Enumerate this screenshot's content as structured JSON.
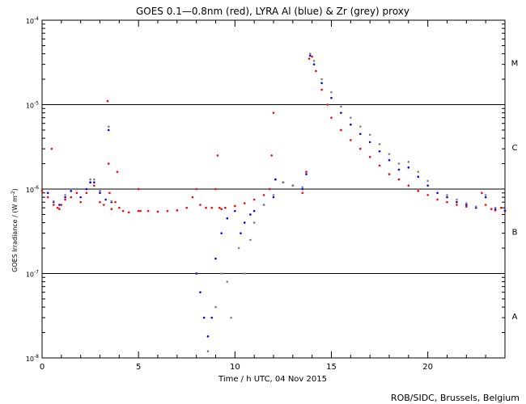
{
  "chart_data": {
    "type": "scatter",
    "title": "GOES 0.1—0.8nm (red), LYRA Al (blue) & Zr (grey) proxy",
    "xlabel": "Time / h UTC, 04 Nov 2015",
    "ylabel": "GOES Irradiance / (W m",
    "ylabel_sup": "-2",
    "ylabel_close": ")",
    "xlim": [
      0,
      24
    ],
    "ylim_log10": [
      -8,
      -4
    ],
    "xticks": [
      0,
      5,
      10,
      15,
      20
    ],
    "xtick_labels": [
      "0",
      "5",
      "10",
      "15",
      "20"
    ],
    "yticks_log10": [
      -8,
      -7,
      -6,
      -5,
      -4
    ],
    "ytick_base": "10",
    "ytick_exponents": [
      "-8",
      "-7",
      "-6",
      "-5",
      "-4"
    ],
    "class_lines_log10": [
      -7,
      -6,
      -5
    ],
    "flare_classes": [
      {
        "label": "A",
        "log10": -7.5
      },
      {
        "label": "B",
        "log10": -6.5
      },
      {
        "label": "C",
        "log10": -5.5
      },
      {
        "label": "M",
        "log10": -4.5
      }
    ],
    "credit": "ROB/SIDC, Brussels, Belgium",
    "series": [
      {
        "name": "GOES 0.1-0.8nm",
        "color": "#ff0000",
        "x": [
          0,
          0.3,
          0.5,
          0.6,
          0.8,
          0.9,
          1.0,
          1.2,
          1.5,
          1.8,
          2.0,
          2.3,
          2.5,
          2.7,
          3.0,
          3.2,
          3.4,
          3.45,
          3.5,
          3.6,
          3.8,
          3.9,
          4.0,
          4.2,
          4.5,
          5.0,
          5.0,
          5.1,
          5.5,
          6.0,
          6.5,
          7.0,
          7.5,
          7.8,
          8.0,
          8.2,
          8.5,
          8.8,
          9.0,
          9.1,
          9.2,
          9.3,
          9.5,
          10.0,
          10.5,
          11.0,
          11.5,
          11.8,
          11.9,
          12.0,
          12.1,
          12.5,
          13.0,
          13.5,
          13.7,
          13.85,
          14.0,
          14.2,
          14.5,
          14.8,
          15.0,
          15.5,
          16.0,
          16.5,
          17.0,
          17.5,
          18.0,
          18.5,
          19.0,
          19.5,
          20.0,
          20.5,
          21.0,
          21.5,
          22.0,
          22.5,
          22.8,
          23.0,
          23.3,
          23.5,
          23.8,
          24.0
        ],
        "y": [
          9.5e-07,
          8e-07,
          3e-06,
          6.5e-07,
          6e-07,
          5.8e-07,
          6.5e-07,
          7.5e-07,
          8e-07,
          9e-07,
          7e-07,
          9e-07,
          1.2e-06,
          1.1e-06,
          7e-07,
          6.5e-07,
          1.1e-05,
          2e-06,
          9e-07,
          5.8e-07,
          7e-07,
          1.6e-06,
          6e-07,
          5.5e-07,
          5.3e-07,
          5.5e-07,
          1e-06,
          5.5e-07,
          5.5e-07,
          5.4e-07,
          5.5e-07,
          5.6e-07,
          6e-07,
          8e-07,
          1e-06,
          6.5e-07,
          6e-07,
          6e-07,
          1e-06,
          2.5e-06,
          6e-07,
          5.8e-07,
          6e-07,
          6.3e-07,
          6.8e-07,
          7.5e-07,
          8.5e-07,
          1e-06,
          2.5e-06,
          8e-06,
          1.3e-06,
          1.2e-06,
          1.1e-06,
          9e-07,
          1.6e-06,
          3.5e-05,
          3.7e-05,
          2.5e-05,
          1.5e-05,
          1e-05,
          7e-06,
          5e-06,
          3.8e-06,
          3e-06,
          2.4e-06,
          1.9e-06,
          1.5e-06,
          1.3e-06,
          1.1e-06,
          9.5e-07,
          8.5e-07,
          7.5e-07,
          7e-07,
          6.5e-07,
          6.2e-07,
          6e-07,
          9e-07,
          6.5e-07,
          5.8e-07,
          5.6e-07,
          6e-07,
          5.5e-07
        ]
      },
      {
        "name": "LYRA Al proxy",
        "color": "#0000ff",
        "x": [
          0,
          0.3,
          0.6,
          0.9,
          1.2,
          1.5,
          1.8,
          2.0,
          2.3,
          2.5,
          2.7,
          3.0,
          3.3,
          3.45,
          3.6,
          8.0,
          8.2,
          8.4,
          8.6,
          8.8,
          9.0,
          9.3,
          9.6,
          10.0,
          10.3,
          10.5,
          10.8,
          11.0,
          11.5,
          12.0,
          12.1,
          12.5,
          13.0,
          13.5,
          13.7,
          13.9,
          14.1,
          14.5,
          15.0,
          15.5,
          16.0,
          16.5,
          17.0,
          17.5,
          18.0,
          18.5,
          19.0,
          19.5,
          20.0,
          20.5,
          21.0,
          21.5,
          22.0,
          22.5,
          23.0,
          23.5,
          24.0
        ],
        "y": [
          1e-06,
          9e-07,
          7e-07,
          6.5e-07,
          8e-07,
          9.5e-07,
          1e-06,
          8e-07,
          1e-06,
          1.2e-06,
          1.2e-06,
          9e-07,
          7.5e-07,
          5e-06,
          7e-07,
          1e-07,
          6e-08,
          3e-08,
          1.8e-08,
          3e-08,
          1.5e-07,
          3e-07,
          4.5e-07,
          5.5e-07,
          3e-07,
          4e-07,
          5e-07,
          5.5e-07,
          6.5e-07,
          8e-07,
          1.3e-06,
          1.2e-06,
          1.1e-06,
          1e-06,
          1.5e-06,
          3.8e-05,
          3e-05,
          1.8e-05,
          1.2e-05,
          8e-06,
          5.8e-06,
          4.5e-06,
          3.6e-06,
          2.8e-06,
          2.2e-06,
          1.7e-06,
          1.8e-06,
          1.4e-06,
          1.1e-06,
          9e-07,
          8e-07,
          7e-07,
          6.5e-07,
          6e-07,
          8e-07,
          5.8e-07,
          5.6e-07
        ]
      },
      {
        "name": "LYRA Zr proxy",
        "color": "#808080",
        "x": [
          0,
          0.6,
          1.2,
          1.8,
          2.5,
          2.7,
          3.0,
          3.45,
          3.6,
          8.6,
          9.0,
          9.3,
          9.6,
          9.8,
          10.2,
          10.5,
          10.8,
          11.0,
          11.5,
          12.0,
          12.5,
          13.0,
          13.5,
          13.9,
          14.1,
          14.5,
          15.0,
          15.5,
          16.0,
          16.5,
          17.0,
          17.5,
          18.0,
          18.5,
          19.0,
          19.5,
          20.0,
          20.5,
          21.0,
          21.5,
          22.0,
          22.5,
          23.0,
          23.5,
          24.0
        ],
        "y": [
          1e-06,
          7.2e-07,
          8.5e-07,
          1e-06,
          1.3e-06,
          1.3e-06,
          9.5e-07,
          5.5e-06,
          7.2e-07,
          1.2e-08,
          4e-08,
          1e-07,
          8e-08,
          3e-08,
          2e-07,
          1e-07,
          2.5e-07,
          4e-07,
          6.5e-07,
          8.5e-07,
          1.2e-06,
          1.1e-06,
          1.05e-06,
          4e-05,
          3.3e-05,
          2e-05,
          1.4e-05,
          9.5e-06,
          7e-06,
          5.5e-06,
          4.4e-06,
          3.4e-06,
          2.6e-06,
          2e-06,
          2.1e-06,
          1.6e-06,
          1.25e-06,
          1e-06,
          8.5e-07,
          7.5e-07,
          6.8e-07,
          6.2e-07,
          8.5e-07,
          6e-07,
          5.8e-07
        ]
      }
    ]
  }
}
